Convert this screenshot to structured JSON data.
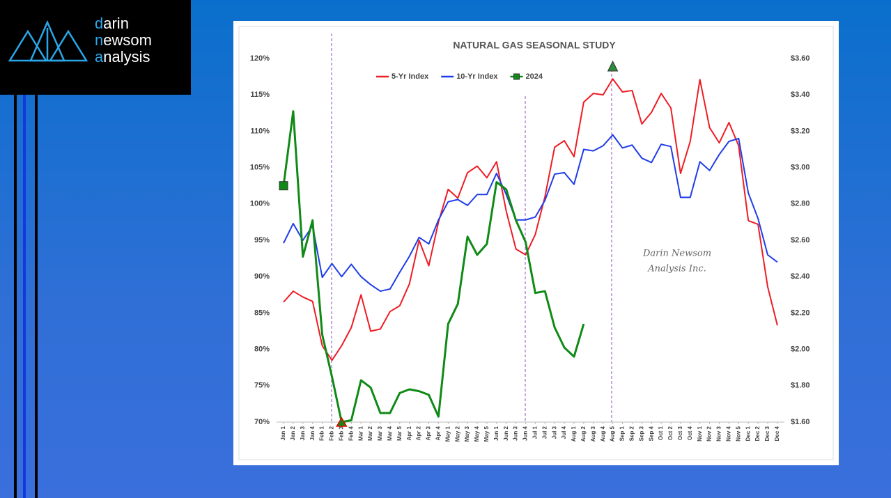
{
  "logo": [
    "darin",
    "newsom",
    "analysis"
  ],
  "chart_data": {
    "type": "line",
    "title": "NATURAL GAS SEASONAL STUDY",
    "annotation": [
      "Darin Newsom",
      "Analysis Inc."
    ],
    "categories": [
      "Jan 1",
      "Jan 2",
      "Jan 3",
      "Jan 4",
      "Feb 1",
      "Feb 2",
      "Feb 3",
      "Feb 4",
      "Mar 1",
      "Mar 2",
      "Mar 3",
      "Mar 4",
      "Mar 5",
      "Apr 1",
      "Apr 2",
      "Apr 3",
      "Apr 4",
      "May 1",
      "May 2",
      "May 3",
      "May 4",
      "May 5",
      "Jun 1",
      "Jun 2",
      "Jun 3",
      "Jun 4",
      "Jul 1",
      "Jul 2",
      "Jul 3",
      "Jul 4",
      "Aug 1",
      "Aug 2",
      "Aug 3",
      "Aug 4",
      "Aug 5",
      "Sep 1",
      "Sep 2",
      "Sep 3",
      "Sep 4",
      "Oct 1",
      "Oct 2",
      "Oct 3",
      "Oct 4",
      "Nov 1",
      "Nov 2",
      "Nov 3",
      "Nov 4",
      "Nov 5",
      "Dec 1",
      "Dec 2",
      "Dec 3",
      "Dec 4"
    ],
    "series": [
      {
        "name": "5-Yr Index",
        "color": "#ee1c24",
        "values": [
          86.5,
          88,
          87.2,
          86.6,
          80.5,
          78.5,
          80.5,
          83,
          87.5,
          82.5,
          82.8,
          85.2,
          86,
          89,
          95,
          91.5,
          97.5,
          102,
          100.8,
          104.3,
          105.2,
          103.6,
          105.8,
          99,
          93.8,
          93,
          95.8,
          101,
          107.8,
          108.7,
          106.5,
          114,
          115.2,
          115,
          117.2,
          115.4,
          115.6,
          111,
          112.6,
          115.2,
          113.2,
          104.2,
          108.6,
          117.1,
          110.5,
          108.4,
          111.2,
          108,
          97.7,
          97.2,
          88.6,
          83.3
        ]
      },
      {
        "name": "10-Yr Index",
        "color": "#1f3ce8",
        "values": [
          94.6,
          97.3,
          95,
          97,
          89.9,
          91.8,
          90,
          91.7,
          90,
          88.9,
          88,
          88.3,
          90.6,
          92.8,
          95.4,
          94.5,
          97.8,
          100.3,
          100.6,
          99.8,
          101.3,
          101.3,
          104.2,
          101.3,
          97.8,
          97.8,
          98.2,
          100.5,
          104.1,
          104.3,
          102.7,
          107.5,
          107.3,
          108,
          109.5,
          107.7,
          108.1,
          106.3,
          105.7,
          108.2,
          107.9,
          100.9,
          100.9,
          105.8,
          104.6,
          106.8,
          108.6,
          109,
          101.5,
          98,
          93,
          92
        ]
      },
      {
        "name": "2024",
        "color": "#0f8a16",
        "axis": "y2",
        "values": [
          2.9,
          3.31,
          2.51,
          2.71,
          2.08,
          1.85,
          1.6,
          1.61,
          1.83,
          1.79,
          1.65,
          1.65,
          1.76,
          1.78,
          1.77,
          1.75,
          1.63,
          2.14,
          2.25,
          2.62,
          2.52,
          2.58,
          2.92,
          2.88,
          2.71,
          2.59,
          2.31,
          2.32,
          2.12,
          2.01,
          1.96,
          2.14,
          null,
          null,
          null,
          null,
          null,
          null,
          null,
          null,
          null,
          null,
          null,
          null,
          null,
          null,
          null,
          null,
          null,
          null,
          null,
          null
        ]
      }
    ],
    "ylim": [
      70,
      120
    ],
    "yticks": [
      {
        "value": 70,
        "label": "70%"
      },
      {
        "value": 75,
        "label": "75%"
      },
      {
        "value": 80,
        "label": "80%"
      },
      {
        "value": 85,
        "label": "85%"
      },
      {
        "value": 90,
        "label": "90%"
      },
      {
        "value": 95,
        "label": "95%"
      },
      {
        "value": 100,
        "label": "100%"
      },
      {
        "value": 105,
        "label": "105%"
      },
      {
        "value": 110,
        "label": "110%"
      },
      {
        "value": 115,
        "label": "115%"
      },
      {
        "value": 120,
        "label": "120%"
      }
    ],
    "y2lim": [
      1.6,
      3.6
    ],
    "y2ticks": [
      {
        "value": 1.6,
        "label": "$1.60"
      },
      {
        "value": 1.8,
        "label": "$1.80"
      },
      {
        "value": 2.0,
        "label": "$2.00"
      },
      {
        "value": 2.2,
        "label": "$2.20"
      },
      {
        "value": 2.4,
        "label": "$2.40"
      },
      {
        "value": 2.6,
        "label": "$2.60"
      },
      {
        "value": 2.8,
        "label": "$2.80"
      },
      {
        "value": 3.0,
        "label": "$3.00"
      },
      {
        "value": 3.2,
        "label": "$3.20"
      },
      {
        "value": 3.4,
        "label": "$3.40"
      },
      {
        "value": 3.6,
        "label": "$3.60"
      }
    ],
    "grid": false
  }
}
